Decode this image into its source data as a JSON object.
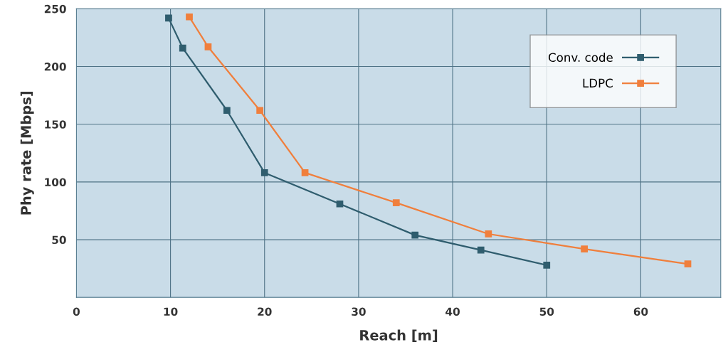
{
  "chart_data": {
    "type": "line",
    "xlabel": "Reach [m]",
    "ylabel": "Phy rate [Mbps]",
    "xlim": [
      0,
      68.5
    ],
    "ylim": [
      0,
      250
    ],
    "xticks": [
      0,
      10,
      20,
      30,
      40,
      50,
      60
    ],
    "yticks": [
      {
        "value": 0,
        "label": null
      },
      50,
      100,
      150,
      200,
      250
    ],
    "series": [
      {
        "name": "Conv. code",
        "color": "#2f5d6e",
        "x": [
          9.8,
          11.3,
          16,
          20,
          28,
          36,
          43,
          50
        ],
        "values": [
          242,
          216,
          162,
          108,
          81,
          54,
          41,
          28
        ]
      },
      {
        "name": "LDPC",
        "color": "#f07f3c",
        "x": [
          12,
          14,
          19.5,
          24.3,
          34,
          43.8,
          54,
          65
        ],
        "values": [
          243,
          217,
          162,
          108,
          82,
          55,
          42,
          29
        ]
      }
    ],
    "marker": "square",
    "line_style": "solid",
    "grid": true,
    "legend": "top right"
  }
}
